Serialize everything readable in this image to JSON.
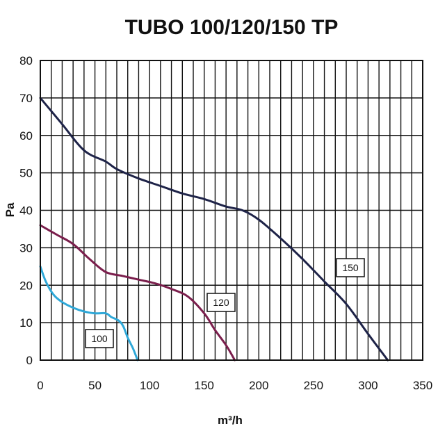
{
  "chart_data": {
    "type": "line",
    "title": "TUBO 100/120/150 TP",
    "xlabel": "m³/h",
    "ylabel": "Pa",
    "xlim": [
      0,
      350
    ],
    "ylim": [
      0,
      80
    ],
    "x_ticks": [
      "0",
      "50",
      "100",
      "150",
      "200",
      "250",
      "300",
      "350"
    ],
    "y_ticks": [
      "0",
      "10",
      "20",
      "30",
      "40",
      "50",
      "60",
      "70",
      "80"
    ],
    "grid": true,
    "series": [
      {
        "name": "100",
        "color": "#2fa8d8",
        "x": [
          0,
          5,
          12,
          20,
          30,
          40,
          50,
          60,
          65,
          72,
          76,
          80,
          85,
          89
        ],
        "y": [
          25,
          21,
          17.5,
          15.5,
          14,
          13,
          12.5,
          12.5,
          11.5,
          10.5,
          9,
          6,
          3,
          0
        ]
      },
      {
        "name": "120",
        "color": "#7a1e4c",
        "x": [
          0,
          15,
          30,
          45,
          60,
          75,
          90,
          105,
          120,
          135,
          150,
          160,
          170,
          178
        ],
        "y": [
          36,
          33.5,
          31,
          27,
          23.5,
          22.5,
          21.5,
          20.5,
          19,
          17,
          12.5,
          8,
          4,
          0
        ]
      },
      {
        "name": "150",
        "color": "#1e2348",
        "x": [
          0,
          20,
          40,
          60,
          70,
          90,
          110,
          130,
          150,
          170,
          185,
          200,
          220,
          240,
          260,
          280,
          300,
          318
        ],
        "y": [
          70,
          63,
          56,
          53,
          51,
          48.5,
          46.5,
          44.5,
          43,
          41,
          40,
          37.5,
          32.5,
          27,
          21,
          15,
          7,
          0
        ]
      }
    ]
  }
}
